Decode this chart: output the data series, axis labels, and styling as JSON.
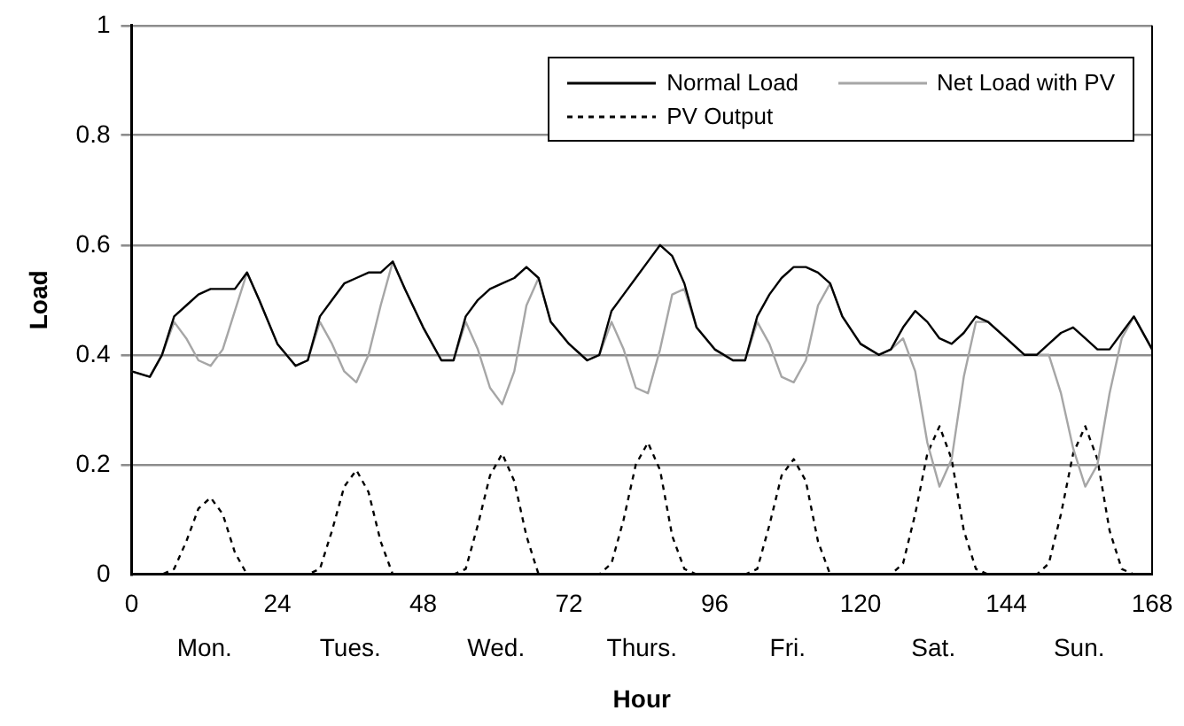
{
  "chart_data": {
    "type": "line",
    "xlabel": "Hour",
    "ylabel": "Load",
    "x": [
      0,
      3,
      5,
      7,
      9,
      11,
      13,
      15,
      17,
      19,
      21,
      24,
      27,
      29,
      31,
      33,
      35,
      37,
      39,
      41,
      43,
      45,
      48,
      51,
      53,
      55,
      57,
      59,
      61,
      63,
      65,
      67,
      69,
      72,
      75,
      77,
      79,
      81,
      83,
      85,
      87,
      89,
      91,
      93,
      96,
      99,
      101,
      103,
      105,
      107,
      109,
      111,
      113,
      115,
      117,
      120,
      123,
      125,
      127,
      129,
      131,
      133,
      135,
      137,
      139,
      141,
      144,
      147,
      149,
      151,
      153,
      155,
      157,
      159,
      161,
      163,
      165,
      168
    ],
    "series": [
      {
        "name": "Normal Load",
        "color": "#000000",
        "line_style": "solid",
        "values": [
          0.37,
          0.36,
          0.4,
          0.47,
          0.49,
          0.51,
          0.52,
          0.52,
          0.52,
          0.55,
          0.5,
          0.42,
          0.38,
          0.39,
          0.47,
          0.5,
          0.53,
          0.54,
          0.55,
          0.55,
          0.57,
          0.52,
          0.45,
          0.39,
          0.39,
          0.47,
          0.5,
          0.52,
          0.53,
          0.54,
          0.56,
          0.54,
          0.46,
          0.42,
          0.39,
          0.4,
          0.48,
          0.51,
          0.54,
          0.57,
          0.6,
          0.58,
          0.53,
          0.45,
          0.41,
          0.39,
          0.39,
          0.47,
          0.51,
          0.54,
          0.56,
          0.56,
          0.55,
          0.53,
          0.47,
          0.42,
          0.4,
          0.41,
          0.45,
          0.48,
          0.46,
          0.43,
          0.42,
          0.44,
          0.47,
          0.46,
          0.43,
          0.4,
          0.4,
          0.42,
          0.44,
          0.45,
          0.43,
          0.41,
          0.41,
          0.44,
          0.47,
          0.41
        ]
      },
      {
        "name": "Net Load with PV",
        "color": "#a6a6a6",
        "line_style": "solid",
        "values": [
          0.37,
          0.36,
          0.4,
          0.46,
          0.43,
          0.39,
          0.38,
          0.41,
          0.48,
          0.55,
          0.5,
          0.42,
          0.38,
          0.39,
          0.46,
          0.42,
          0.37,
          0.35,
          0.4,
          0.49,
          0.57,
          0.52,
          0.45,
          0.39,
          0.39,
          0.46,
          0.41,
          0.34,
          0.31,
          0.37,
          0.49,
          0.54,
          0.46,
          0.42,
          0.39,
          0.4,
          0.46,
          0.41,
          0.34,
          0.33,
          0.41,
          0.51,
          0.52,
          0.45,
          0.41,
          0.39,
          0.39,
          0.46,
          0.42,
          0.36,
          0.35,
          0.39,
          0.49,
          0.53,
          0.47,
          0.42,
          0.4,
          0.41,
          0.43,
          0.37,
          0.24,
          0.16,
          0.21,
          0.36,
          0.46,
          0.46,
          0.43,
          0.4,
          0.4,
          0.4,
          0.33,
          0.23,
          0.16,
          0.2,
          0.33,
          0.43,
          0.47,
          0.41
        ]
      },
      {
        "name": "PV Output",
        "color": "#000000",
        "line_style": "dotted",
        "values": [
          0,
          0,
          0,
          0.01,
          0.06,
          0.12,
          0.14,
          0.11,
          0.04,
          0,
          0,
          0,
          0,
          0,
          0.01,
          0.08,
          0.16,
          0.19,
          0.15,
          0.06,
          0,
          0,
          0,
          0,
          0,
          0.01,
          0.09,
          0.18,
          0.22,
          0.17,
          0.07,
          0,
          0,
          0,
          0,
          0,
          0.02,
          0.1,
          0.2,
          0.24,
          0.19,
          0.07,
          0.01,
          0,
          0,
          0,
          0,
          0.01,
          0.09,
          0.18,
          0.21,
          0.17,
          0.06,
          0,
          0,
          0,
          0,
          0,
          0.02,
          0.11,
          0.22,
          0.27,
          0.21,
          0.08,
          0.01,
          0,
          0,
          0,
          0,
          0.02,
          0.11,
          0.22,
          0.27,
          0.21,
          0.08,
          0.01,
          0,
          0
        ]
      }
    ],
    "xlim": [
      0,
      168
    ],
    "xticks": [
      0,
      24,
      48,
      72,
      96,
      120,
      144,
      168
    ],
    "ylim": [
      0,
      1
    ],
    "yticks": [
      0,
      0.2,
      0.4,
      0.6,
      0.8,
      1
    ],
    "annotations": [
      "Mon.",
      "Tues.",
      "Wed.",
      "Thurs.",
      "Fri.",
      "Sat.",
      "Sun."
    ],
    "grid": "y",
    "legend": "top right",
    "marker": "none"
  }
}
